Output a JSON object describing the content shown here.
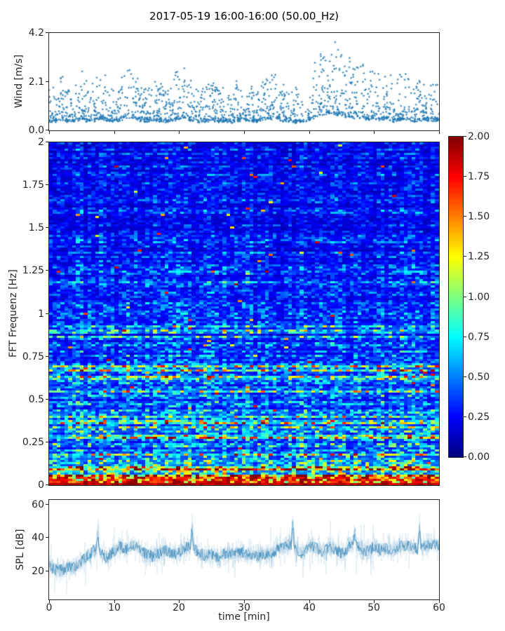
{
  "title": "2017-05-19 16:00-16:00 (50.00_Hz)",
  "colors": {
    "marker": "#1f77b4",
    "line": "#1f77b4",
    "axis": "#262626",
    "background": "#ffffff",
    "colormap": "jet",
    "colormap_min": "#000080",
    "colormap_max": "#800000"
  },
  "wind_axis": {
    "ylabel": "Wind [m/s]",
    "ytick_labels": [
      "0.0",
      "2.1",
      "4.2"
    ],
    "ytick_values": [
      0,
      2.1,
      4.2
    ],
    "ylim": [
      0,
      4.2
    ]
  },
  "spectrogram_axis": {
    "ylabel": "FFT Frequenz [Hz]",
    "ytick_labels": [
      "0",
      "0.25",
      "0.5",
      "0.75",
      "1",
      "1.25",
      "1.5",
      "1.75",
      "2"
    ],
    "ytick_values": [
      0,
      0.25,
      0.5,
      0.75,
      1,
      1.25,
      1.5,
      1.75,
      2
    ],
    "ylim": [
      0,
      2
    ]
  },
  "colorbar": {
    "tick_labels": [
      "0.00",
      "0.25",
      "0.50",
      "0.75",
      "1.00",
      "1.25",
      "1.50",
      "1.75",
      "2.00"
    ],
    "tick_values": [
      0,
      0.25,
      0.5,
      0.75,
      1,
      1.25,
      1.5,
      1.75,
      2
    ],
    "range": [
      0,
      2
    ]
  },
  "spl_axis": {
    "ylabel": "SPL [dB]",
    "ytick_labels": [
      "20",
      "40",
      "60"
    ],
    "ytick_values": [
      20,
      40,
      60
    ],
    "ylim": [
      3,
      63
    ]
  },
  "time_axis": {
    "label": "time [min]",
    "tick_labels": [
      "0",
      "10",
      "20",
      "30",
      "40",
      "50",
      "60"
    ],
    "tick_values": [
      0,
      10,
      20,
      30,
      40,
      50,
      60
    ],
    "range": [
      0,
      60
    ]
  },
  "chart_data": [
    {
      "type": "scatter",
      "name": "wind-speed",
      "title": "2017-05-19 16:00-16:00 (50.00_Hz)",
      "xlabel": "time [min]",
      "ylabel": "Wind [m/s]",
      "x_range": [
        0,
        60
      ],
      "ylim": [
        0,
        4.2
      ],
      "marker": "plus",
      "marker_color": "#1f77b4",
      "n_points": 1750,
      "seed": 11,
      "typical_band": [
        0.3,
        1.2
      ],
      "peak": {
        "x_min": 44,
        "value": 4.0
      },
      "envelope_by_minute": [
        1.6,
        1.5,
        1.9,
        1.5,
        1.6,
        2.0,
        1.5,
        1.7,
        2.2,
        1.6,
        1.5,
        1.9,
        2.1,
        2.2,
        1.7,
        1.5,
        1.9,
        1.6,
        1.4,
        1.8,
        2.0,
        2.3,
        1.6,
        1.5,
        1.4,
        1.8,
        1.5,
        1.6,
        1.4,
        1.7,
        1.8,
        1.5,
        1.6,
        2.0,
        1.9,
        2.1,
        1.5,
        1.6,
        1.4,
        1.5,
        1.7,
        2.4,
        2.9,
        3.1,
        3.0,
        2.7,
        2.5,
        2.2,
        2.4,
        1.9,
        2.3,
        1.8,
        2.1,
        1.6,
        1.9,
        2.0,
        1.5,
        1.7,
        1.6,
        1.8,
        1.6
      ]
    },
    {
      "type": "heatmap",
      "name": "fft-spectrogram",
      "xlabel": "time [min]",
      "ylabel": "FFT Frequenz [Hz]",
      "x_range": [
        0,
        60
      ],
      "y_range": [
        0,
        2
      ],
      "value_range": [
        0,
        2
      ],
      "colormap": "jet",
      "cols": 101,
      "rows": 163,
      "seed": 23,
      "freq_profile": [
        [
          0,
          1.25
        ],
        [
          0.06,
          0.95
        ],
        [
          0.12,
          0.72
        ],
        [
          0.2,
          0.55
        ],
        [
          0.3,
          0.58
        ],
        [
          0.45,
          0.5
        ],
        [
          0.65,
          0.52
        ],
        [
          0.8,
          0.42
        ],
        [
          1.2,
          0.36
        ],
        [
          1.6,
          0.33
        ],
        [
          2,
          0.3
        ]
      ],
      "streak_bands": [
        [
          0,
          0.15,
          0.3
        ],
        [
          0.15,
          0.25,
          0.15
        ],
        [
          0.25,
          0.4,
          0.3
        ],
        [
          0.4,
          0.6,
          0.12
        ],
        [
          0.6,
          0.72,
          0.25
        ],
        [
          0.72,
          1.0,
          0.1
        ],
        [
          1.0,
          2.0,
          0.06
        ]
      ],
      "hot_bottom_band": {
        "below_hz": 0.05,
        "value_range": [
          1.55,
          2.0
        ]
      }
    },
    {
      "type": "line",
      "name": "spl",
      "xlabel": "time [min]",
      "ylabel": "SPL [dB]",
      "x_range": [
        0,
        60
      ],
      "ylim": [
        3,
        63
      ],
      "line_color": "#1f77b4",
      "seed": 5,
      "noise_band_db": 7,
      "mean_by_minute": [
        23,
        21,
        21,
        22,
        23,
        26,
        30,
        33,
        31,
        28,
        32,
        35,
        33,
        36,
        33,
        30,
        29,
        31,
        33,
        30,
        32,
        34,
        35,
        31,
        29,
        30,
        28,
        31,
        30,
        32,
        31,
        30,
        29,
        31,
        30,
        33,
        34,
        36,
        33,
        31,
        35,
        34,
        32,
        35,
        33,
        31,
        34,
        36,
        33,
        32,
        35,
        33,
        34,
        32,
        35,
        36,
        34,
        33,
        36,
        37,
        36
      ],
      "spikes": [
        [
          7.5,
          48
        ],
        [
          22,
          52
        ],
        [
          37.5,
          57
        ],
        [
          47,
          50
        ],
        [
          57,
          53
        ]
      ]
    }
  ]
}
